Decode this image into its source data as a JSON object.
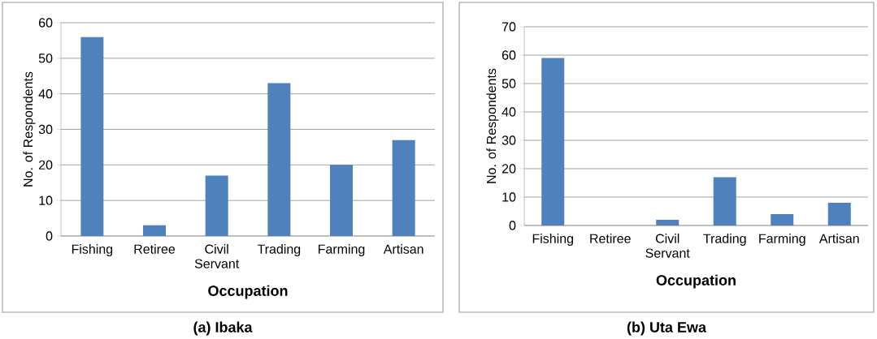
{
  "chart_data": [
    {
      "type": "bar",
      "title": "(a) Ibaka",
      "xlabel": "Occupation",
      "ylabel": "No.  of Respondents",
      "categories": [
        "Fishing",
        "Retiree",
        "Civil Servant",
        "Trading",
        "Farming",
        "Artisan"
      ],
      "values": [
        56,
        3,
        17,
        43,
        20,
        27
      ],
      "color": "#4f81bd",
      "ylim": [
        0,
        60
      ],
      "yticks": [
        0,
        10,
        20,
        30,
        40,
        50,
        60
      ],
      "grid": "y"
    },
    {
      "type": "bar",
      "title": "(b) Uta Ewa",
      "xlabel": "Occupation",
      "ylabel": "No. of Respondents",
      "categories": [
        "Fishing",
        "Retiree",
        "Civil Servant",
        "Trading",
        "Farming",
        "Artisan"
      ],
      "values": [
        59,
        0,
        2,
        17,
        4,
        8
      ],
      "color": "#4f81bd",
      "ylim": [
        0,
        70
      ],
      "yticks": [
        0,
        10,
        20,
        30,
        40,
        50,
        60,
        70
      ],
      "grid": "y"
    }
  ]
}
